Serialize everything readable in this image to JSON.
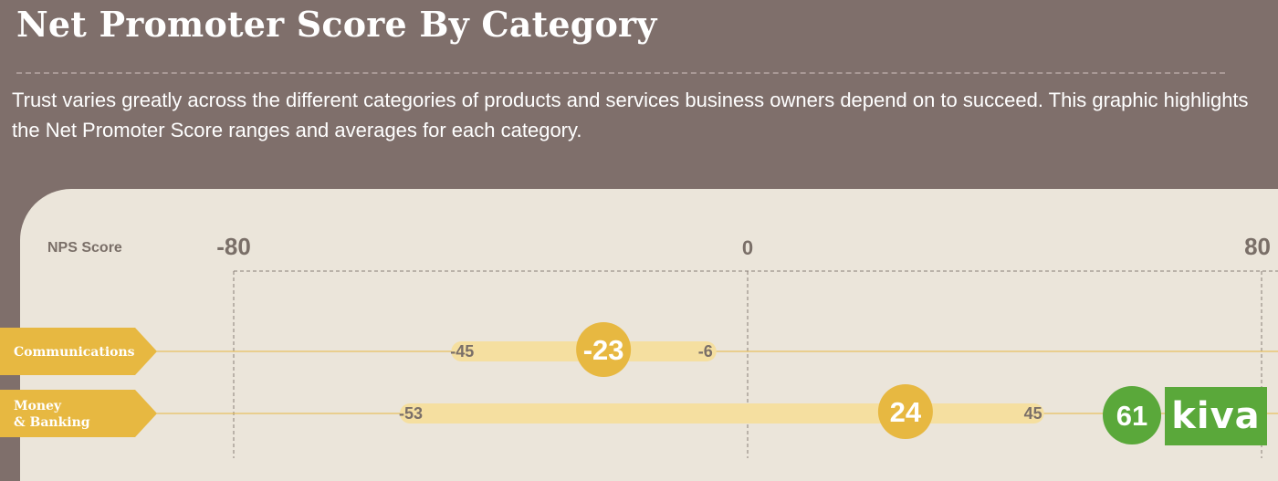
{
  "header": {
    "title": "Net Promoter Score By Category",
    "subtitle": "Trust varies greatly across the different categories of products and services business owners depend on to succeed. This graphic highlights the Net Promoter Score ranges and averages for each category."
  },
  "colors": {
    "background": "#7f6f6b",
    "panel": "#ebe5da",
    "accent": "#e7b841",
    "range_bar": "#f5dfa0",
    "highlight": "#5aa83a"
  },
  "chart_data": {
    "type": "range",
    "axis_label": "NPS Score",
    "xlim": [
      -80,
      80
    ],
    "ticks": [
      -80,
      0,
      80
    ],
    "rows": [
      {
        "category": [
          "Communications"
        ],
        "min": -45,
        "max": -6,
        "average": -23
      },
      {
        "category": [
          "Money",
          "& Banking"
        ],
        "min": -53,
        "max": 45,
        "average": 24,
        "highlight": {
          "value": 61,
          "label": "kiva"
        }
      }
    ]
  }
}
